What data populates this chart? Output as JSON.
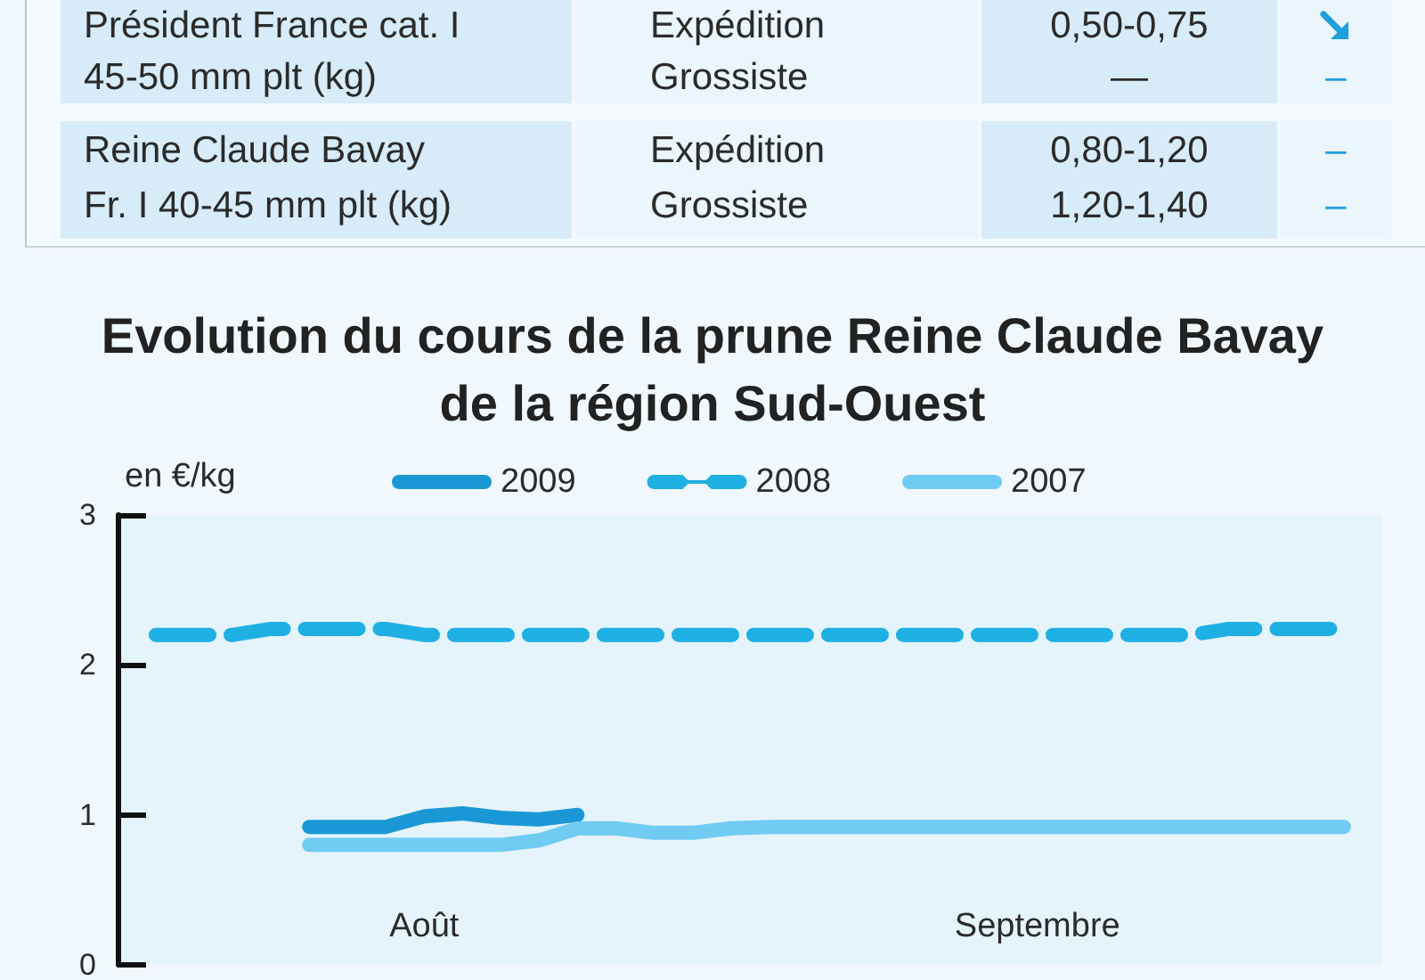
{
  "chart_data": [
    {
      "type": "other",
      "annotations": [
        "Président France cat. I",
        "Expédition",
        "0,50-0,75",
        "45-50 mm plt (kg)",
        "Grossiste",
        "—",
        "–",
        "Reine Claude Bavay",
        "Expédition",
        "0,80-1,20",
        "–",
        "Fr. I 40-45 mm plt (kg)",
        "Grossiste",
        "1,20-1,40",
        "–"
      ]
    },
    {
      "type": "line",
      "title": "Evolution du cours de la prune Reine Claude Bavay de la région Sud-Ouest",
      "ylabel": "en €/kg",
      "ylim": [
        0,
        3
      ],
      "yticks": [
        0,
        1,
        2,
        3
      ],
      "grid": false,
      "legend": "top",
      "marker": "none",
      "line_style": "solid",
      "categories": [
        null,
        null,
        null,
        null,
        null,
        null,
        null,
        null,
        "Août",
        null,
        null,
        null,
        null,
        null,
        null,
        null,
        null,
        null,
        null,
        null,
        null,
        null,
        null,
        null,
        "Septembre",
        null,
        null,
        null,
        null,
        null,
        null,
        null,
        null,
        null
      ],
      "series": [
        {
          "name": "2009",
          "color": "#1a98d5",
          "values": [
            null,
            null,
            null,
            null,
            null,
            0.92,
            0.92,
            0.92,
            0.99,
            1.01,
            0.98,
            0.97,
            1.0,
            null,
            null,
            null,
            null,
            null,
            null,
            null,
            null,
            null,
            null,
            null,
            null,
            null,
            null,
            null,
            null,
            null,
            null,
            null,
            null,
            null
          ]
        },
        {
          "name": "2008",
          "color": "#1fb0e3",
          "line_style": "dashed",
          "values": [
            null,
            2.2,
            2.2,
            2.2,
            2.24,
            2.24,
            2.24,
            2.24,
            2.2,
            2.2,
            2.2,
            2.2,
            2.2,
            2.2,
            2.2,
            2.2,
            2.2,
            2.2,
            2.2,
            2.2,
            2.2,
            2.2,
            2.2,
            2.2,
            2.2,
            2.2,
            2.2,
            2.2,
            2.2,
            2.24,
            2.24,
            2.24,
            2.24,
            null
          ]
        },
        {
          "name": "2007",
          "color": "#70cbf2",
          "values": [
            null,
            null,
            null,
            null,
            null,
            0.8,
            0.8,
            0.8,
            0.8,
            0.8,
            0.8,
            0.83,
            0.91,
            0.91,
            0.88,
            0.88,
            0.91,
            0.92,
            0.92,
            0.92,
            0.92,
            0.92,
            0.92,
            0.92,
            0.92,
            0.92,
            0.92,
            0.92,
            0.92,
            0.92,
            0.92,
            0.92,
            0.92,
            null
          ]
        }
      ]
    }
  ]
}
